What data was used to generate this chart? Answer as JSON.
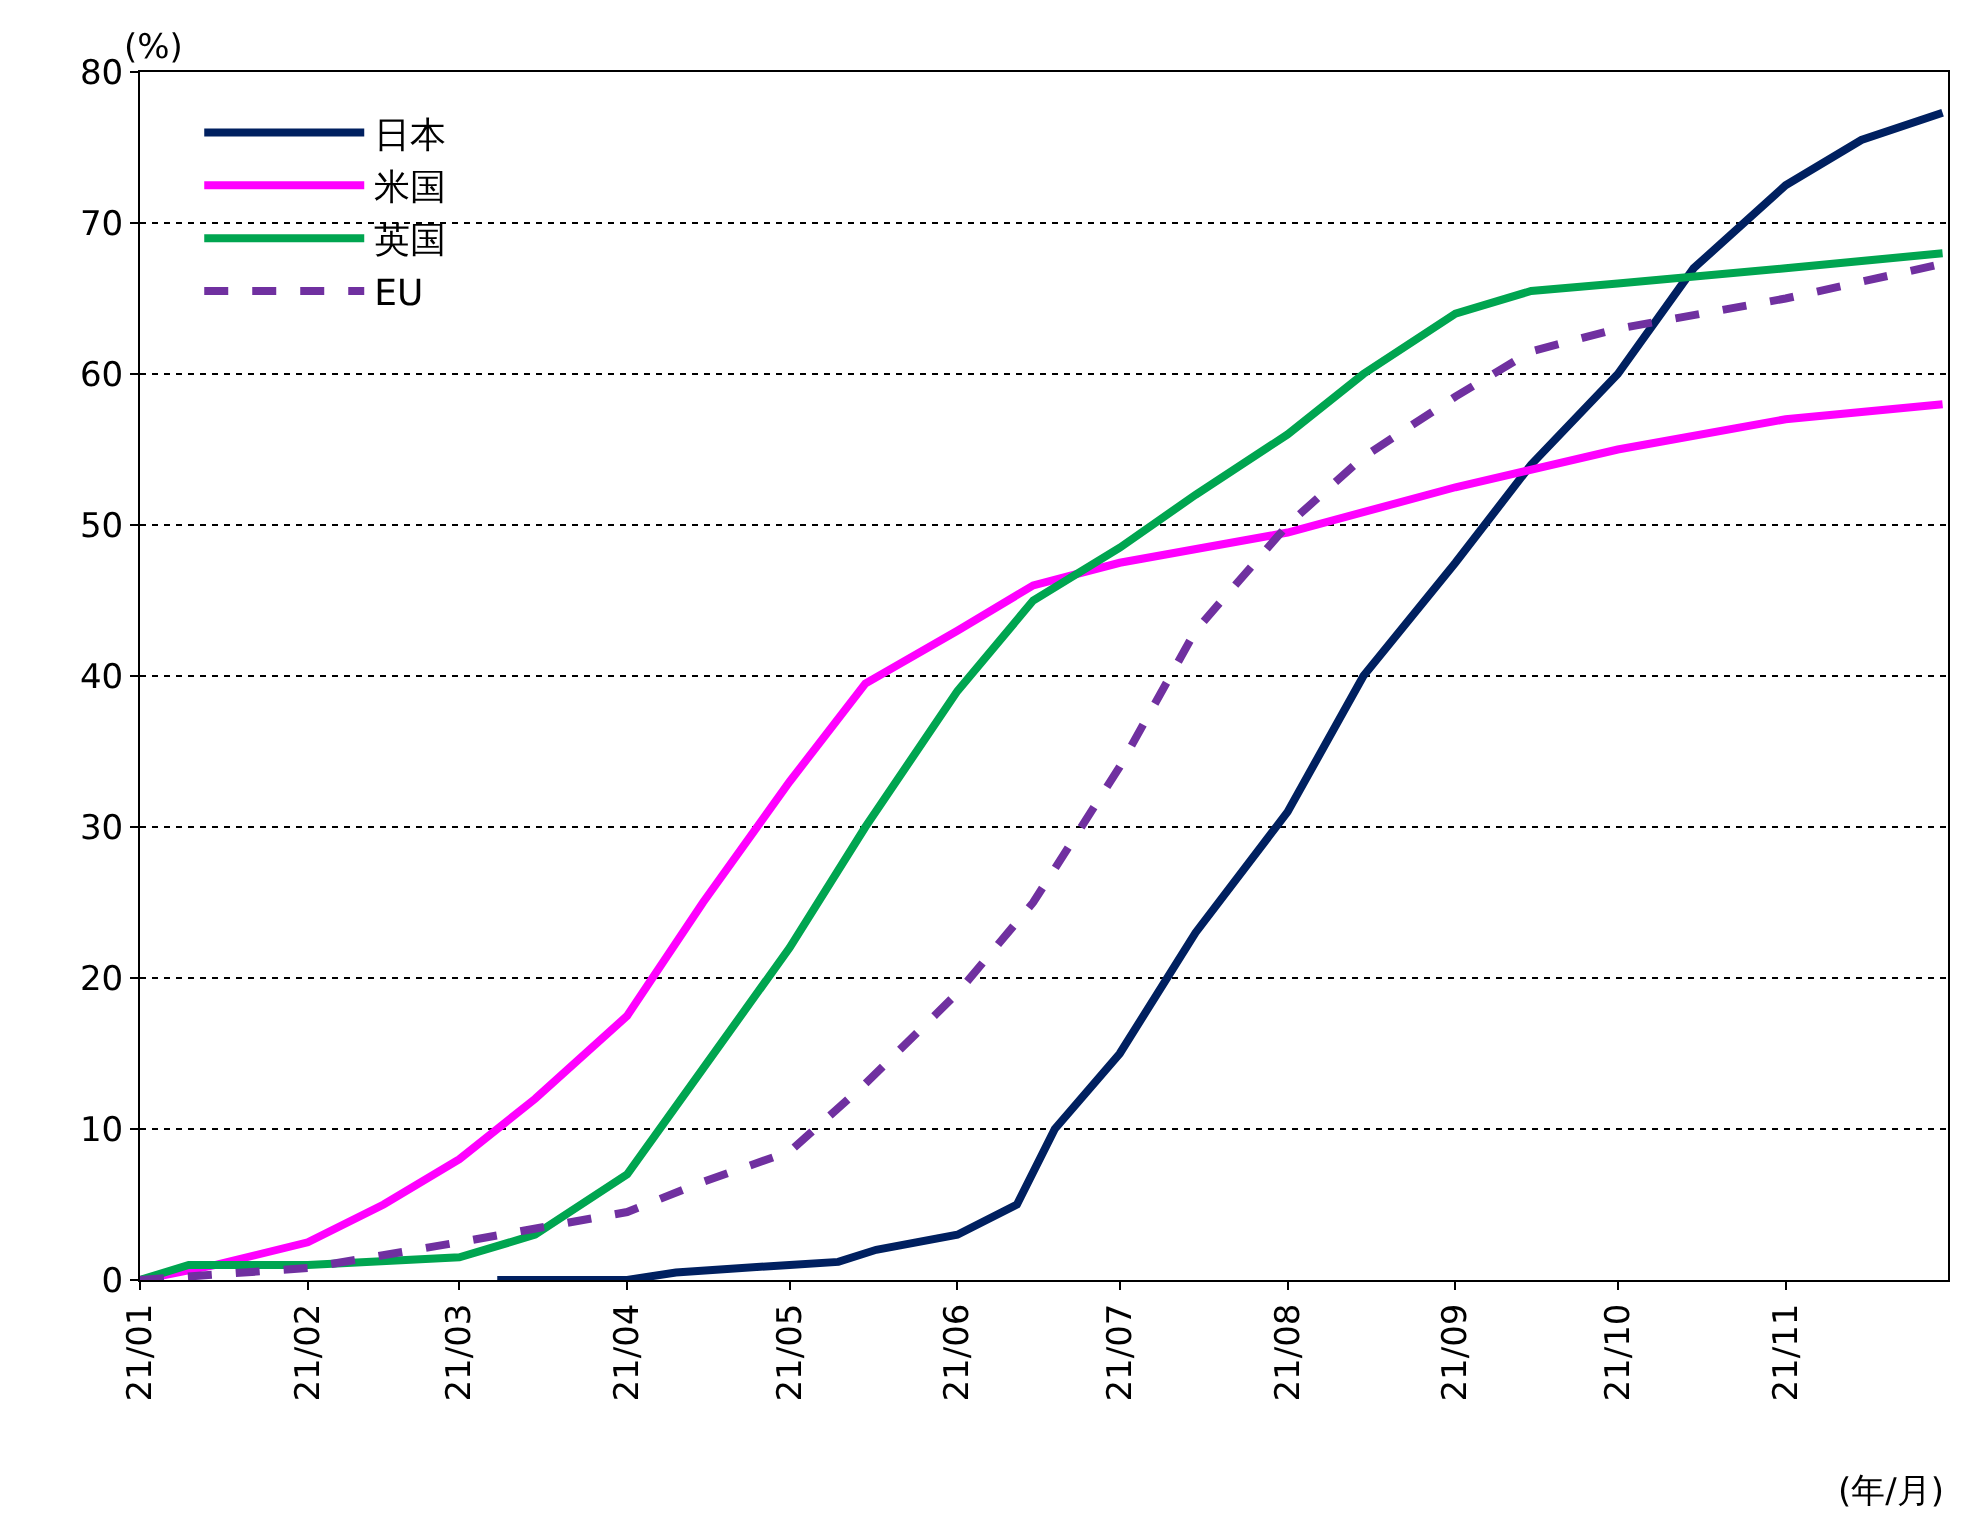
{
  "chart_data": {
    "type": "line",
    "annotations": [
      "(%)",
      "(年/月)"
    ],
    "xlim": [
      "--01-01",
      "--12-01"
    ],
    "xticks": [
      {
        "value": "--01-01",
        "label": "21/01"
      },
      {
        "value": "--02-01",
        "label": "21/02"
      },
      {
        "value": "--03-01",
        "label": "21/03"
      },
      {
        "value": "--04-01",
        "label": "21/04"
      },
      {
        "value": "--05-01",
        "label": "21/05"
      },
      {
        "value": "--06-01",
        "label": "21/06"
      },
      {
        "value": "--07-01",
        "label": "21/07"
      },
      {
        "value": "--08-01",
        "label": "21/08"
      },
      {
        "value": "--09-01",
        "label": "21/09"
      },
      {
        "value": "--10-01",
        "label": "21/10"
      },
      {
        "value": "--11-01",
        "label": "21/11"
      }
    ],
    "ylim": [
      0,
      80
    ],
    "yticks": [
      0,
      10,
      20,
      30,
      40,
      50,
      60,
      70,
      80
    ],
    "grid": "y",
    "legend": "top left",
    "series": [
      {
        "name": "日本",
        "color": "#002060",
        "line_style": "solid",
        "x": [
          "--03-08",
          "--04-01",
          "--04-10",
          "--05-01",
          "--05-10",
          "--05-17",
          "--06-01",
          "--06-12",
          "--06-19",
          "--07-01",
          "--07-15",
          "--08-01",
          "--08-15",
          "--09-01",
          "--09-15",
          "--10-01",
          "--10-15",
          "--11-01",
          "--11-15",
          "--11-30"
        ],
        "values": [
          0,
          0,
          0.5,
          1,
          1.2,
          2,
          3,
          5,
          10,
          15,
          23,
          31,
          40,
          47.5,
          54,
          60,
          67,
          72.5,
          75.5,
          77.3
        ]
      },
      {
        "name": "米国",
        "color": "#ff00ff",
        "line_style": "solid",
        "x": [
          "--01-01",
          "--01-15",
          "--02-01",
          "--02-15",
          "--03-01",
          "--03-15",
          "--04-01",
          "--04-15",
          "--05-01",
          "--05-15",
          "--06-01",
          "--06-15",
          "--07-01",
          "--08-01",
          "--09-01",
          "--10-01",
          "--11-01",
          "--11-30"
        ],
        "values": [
          0,
          1,
          2.5,
          5,
          8,
          12,
          17.5,
          25,
          33,
          39.5,
          43,
          46,
          47.5,
          49.5,
          52.5,
          55,
          57,
          58
        ]
      },
      {
        "name": "英国",
        "color": "#00a550",
        "line_style": "solid",
        "x": [
          "--01-01",
          "--01-10",
          "--02-01",
          "--03-01",
          "--03-15",
          "--04-01",
          "--04-15",
          "--05-01",
          "--05-15",
          "--06-01",
          "--06-15",
          "--07-01",
          "--07-15",
          "--08-01",
          "--08-15",
          "--09-01",
          "--09-15",
          "--10-01",
          "--11-01",
          "--11-30"
        ],
        "values": [
          0,
          1,
          1,
          1.5,
          3,
          7,
          14,
          22,
          30,
          39,
          45,
          48.5,
          52,
          56,
          60,
          64,
          65.5,
          66,
          67,
          68
        ]
      },
      {
        "name": "EU",
        "color": "#7030a0",
        "line_style": "dashed",
        "x": [
          "--01-01",
          "--02-01",
          "--03-01",
          "--04-01",
          "--04-15",
          "--05-01",
          "--05-15",
          "--06-01",
          "--06-15",
          "--07-01",
          "--07-15",
          "--08-01",
          "--08-15",
          "--09-01",
          "--09-15",
          "--10-01",
          "--11-01",
          "--11-30"
        ],
        "values": [
          0,
          0.8,
          2.5,
          4.5,
          6.5,
          8.5,
          13,
          19,
          25,
          34,
          43,
          50,
          54.5,
          58.5,
          61.5,
          63,
          65,
          67.3
        ]
      }
    ]
  }
}
